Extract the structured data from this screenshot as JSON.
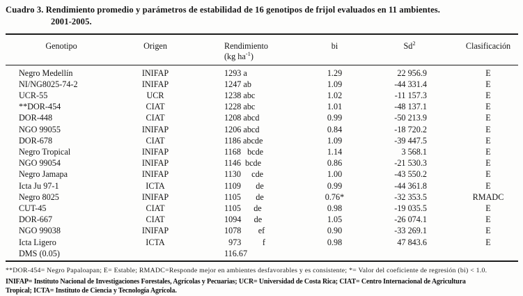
{
  "title": {
    "line1": "Cuadro 3. Rendimiento promedio y parámetros de estabilidad de 16 genotipos de frijol evaluados en 11 ambientes.",
    "line2": "2001-2005."
  },
  "table": {
    "headers": {
      "genotipo": "Genotipo",
      "origen": "Origen",
      "rendimiento_line1": "Rendimiento",
      "rendimiento_unit_pre": "(kg ha",
      "rendimiento_unit_sup": "-1",
      "rendimiento_unit_post": ")",
      "bi": "bi",
      "sd_base": "Sd",
      "sd_sup": "2",
      "clasificacion": "Clasificación"
    },
    "rows": [
      {
        "genotipo": "Negro Medellín",
        "origen": "INIFAP",
        "rendimiento": "1293 a",
        "bi": "1.29",
        "sd2": "22 956.9",
        "clasificacion": "E"
      },
      {
        "genotipo": "NI/NG8025-74-2",
        "origen": "INIFAP",
        "rendimiento": "1247 ab",
        "bi": "1.09",
        "sd2": "-44 331.4",
        "clasificacion": "E"
      },
      {
        "genotipo": "UCR-55",
        "origen": "UCR",
        "rendimiento": "1238 abc",
        "bi": "1.02",
        "sd2": "-11 157.3",
        "clasificacion": "E"
      },
      {
        "genotipo": "**DOR-454",
        "origen": "CIAT",
        "rendimiento": "1228 abc",
        "bi": "1.01",
        "sd2": "-48 137.1",
        "clasificacion": "E"
      },
      {
        "genotipo": "DOR-448",
        "origen": "CIAT",
        "rendimiento": "1208 abcd",
        "bi": "0.99",
        "sd2": "-50 213.9",
        "clasificacion": "E"
      },
      {
        "genotipo": "NGO 99055",
        "origen": "INIFAP",
        "rendimiento": "1206 abcd",
        "bi": "0.84",
        "sd2": "-18 720.2",
        "clasificacion": "E"
      },
      {
        "genotipo": "DOR-678",
        "origen": "CIAT",
        "rendimiento": "1186 abcde",
        "bi": "1.09",
        "sd2": "-39 447.5",
        "clasificacion": "E"
      },
      {
        "genotipo": "Negro Tropical",
        "origen": "INIFAP",
        "rendimiento": "1168   bcde",
        "bi": "1.14",
        "sd2": "3 568.1",
        "clasificacion": "E"
      },
      {
        "genotipo": "NGO 99054",
        "origen": "INIFAP",
        "rendimiento": "1146  bcde",
        "bi": "0.86",
        "sd2": "-21 530.3",
        "clasificacion": "E"
      },
      {
        "genotipo": "Negro Jamapa",
        "origen": "INIFAP",
        "rendimiento": "1130     cde",
        "bi": "1.00",
        "sd2": "-43 550.2",
        "clasificacion": "E"
      },
      {
        "genotipo": "Icta Ju 97-1",
        "origen": "ICTA",
        "rendimiento": "1109       de",
        "bi": "0.99",
        "sd2": "-44 361.8",
        "clasificacion": "E"
      },
      {
        "genotipo": "Negro 8025",
        "origen": "INIFAP",
        "rendimiento": "1105       de",
        "bi": "0.76*",
        "sd2": "-32 353.5",
        "clasificacion": "RMADC"
      },
      {
        "genotipo": "CUT-45",
        "origen": "CIAT",
        "rendimiento": "1105      de",
        "bi": "0.98",
        "sd2": "-19 035.5",
        "clasificacion": "E"
      },
      {
        "genotipo": "DOR-667",
        "origen": "CIAT",
        "rendimiento": "1094      de",
        "bi": "1.05",
        "sd2": "-26 074.1",
        "clasificacion": "E"
      },
      {
        "genotipo": "NGO 99038",
        "origen": "INIFAP",
        "rendimiento": "1078        ef",
        "bi": "0.90",
        "sd2": "-33 269.1",
        "clasificacion": "E"
      },
      {
        "genotipo": "Icta Ligero",
        "origen": "ICTA",
        "rendimiento": "  973          f",
        "bi": "0.98",
        "sd2": "47 843.6",
        "clasificacion": "E"
      },
      {
        "genotipo": "DMS (0.05)",
        "origen": "",
        "rendimiento": "116.67",
        "bi": "",
        "sd2": "",
        "clasificacion": ""
      }
    ]
  },
  "footnotes": {
    "line1": "**DOR-454= Negro Papaloapan; E= Estable; RMADC=Responde mejor en ambientes desfavorables y es consistente; *= Valor del coeficiente de regresión (bi) < 1.0.",
    "line2": "INIFAP= Instituto Nacional de Investigaciones Forestales, Agrícolas y Pecuarias; UCR= Universidad de Costa Rica;  CIAT= Centro Internacional de Agricultura",
    "line3": "Tropical; ICTA= Instituto de Ciencia y Tecnología Agrícola."
  },
  "colors": {
    "background": "#fdfdfc",
    "text": "#161616",
    "rule": "#1b1b1b"
  }
}
